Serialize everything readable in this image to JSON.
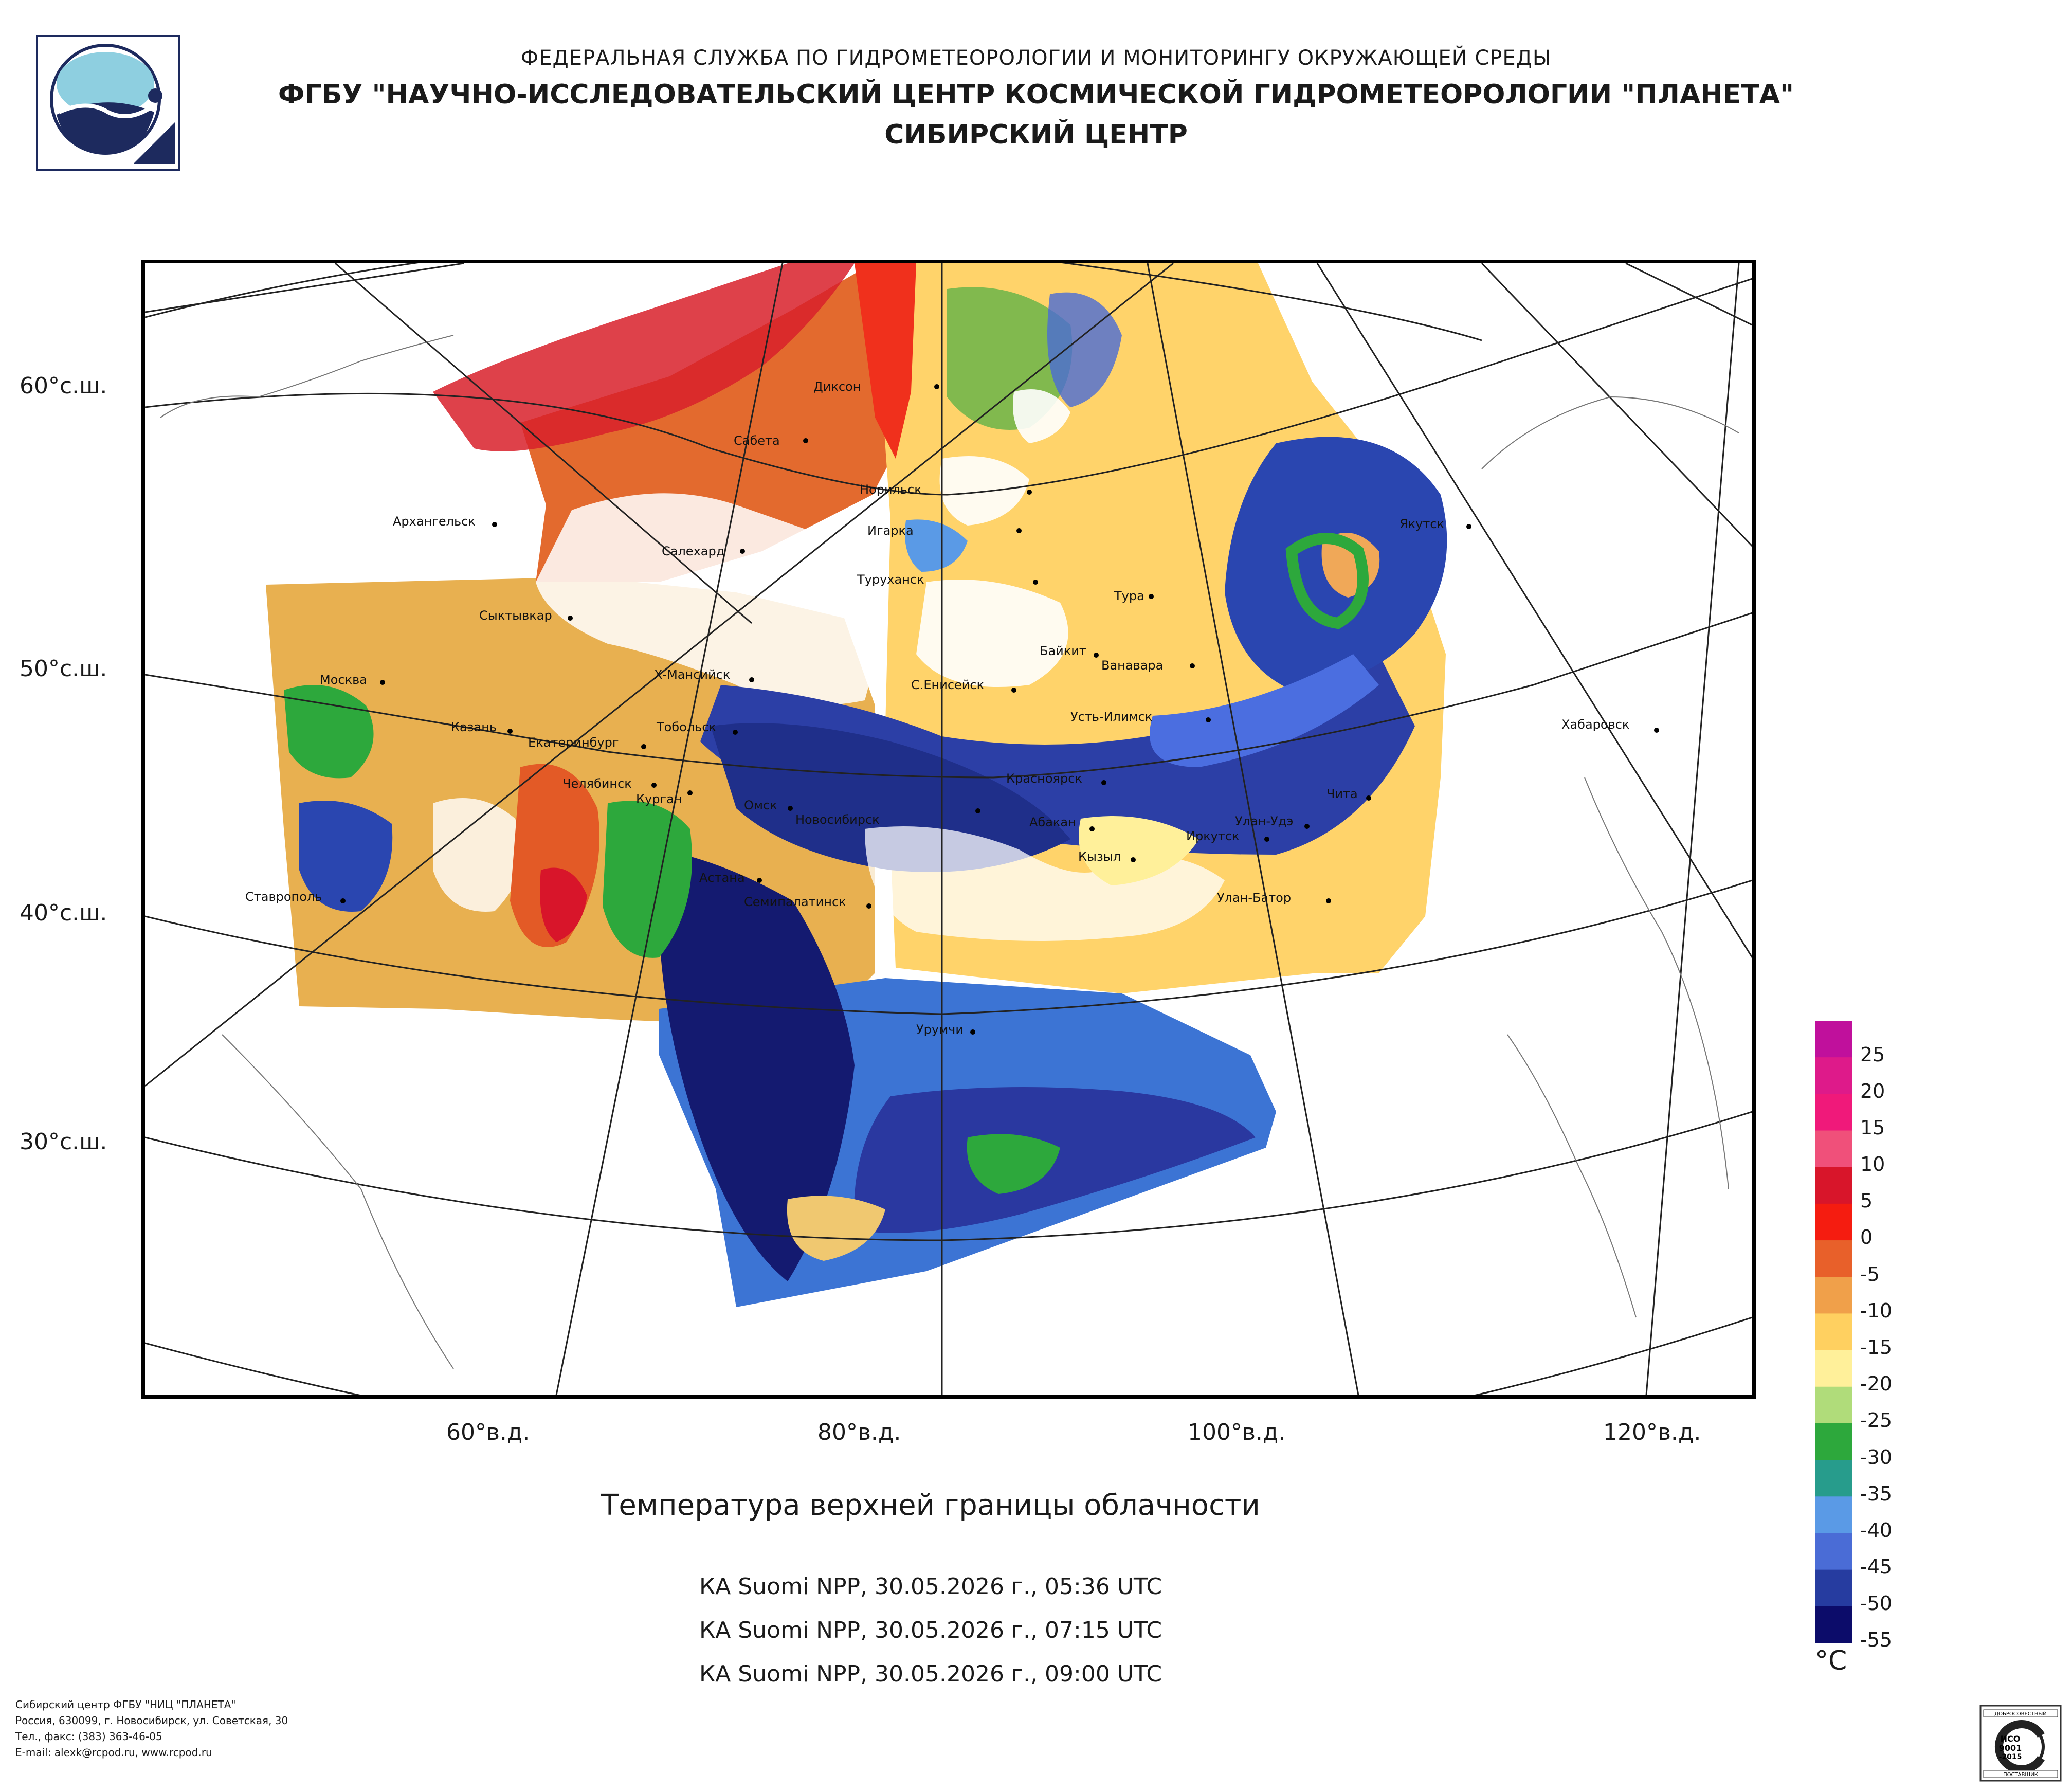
{
  "header": {
    "line1": "ФЕДЕРАЛЬНАЯ СЛУЖБА ПО ГИДРОМЕТЕОРОЛОГИИ И МОНИТОРИНГУ ОКРУЖАЮЩЕЙ СРЕДЫ",
    "line2": "ФГБУ \"НАУЧНО-ИССЛЕДОВАТЕЛЬСКИЙ ЦЕНТР КОСМИЧЕСКОЙ ГИДРОМЕТЕОРОЛОГИИ \"ПЛАНЕТА\"",
    "line3": "СИБИРСКИЙ ЦЕНТР"
  },
  "map": {
    "lat_labels": [
      "60°с.ш.",
      "50°с.ш.",
      "40°с.ш.",
      "30°с.ш."
    ],
    "lon_labels": [
      "60°в.д.",
      "80°в.д.",
      "100°в.д.",
      "120°в.д."
    ],
    "cities": [
      "Диксон",
      "Сабета",
      "Норильск",
      "Игарка",
      "Архангельск",
      "Салехард",
      "Туруханск",
      "Тура",
      "Якутск",
      "Сыктывкар",
      "Байкит",
      "Ванавара",
      "Москва",
      "Х-Мансийск",
      "С.Енисейск",
      "Усть-Илимск",
      "Хабаровск",
      "Казань",
      "Екатеринбург",
      "Тобольск",
      "Красноярск",
      "Челябинск",
      "Курган",
      "Омск",
      "Чита",
      "Новосибирск",
      "Абакан",
      "Улан-Удэ",
      "Иркутск",
      "Кызыл",
      "Астана",
      "Ставрополь",
      "Семипалатинск",
      "Улан-Батор",
      "Урумчи"
    ]
  },
  "title": "Температура верхней границы облачности",
  "passes": [
    "КА Suomi NPP, 30.05.2026 г., 05:36 UTC",
    "КА Suomi NPP, 30.05.2026 г., 07:15 UTC",
    "КА Suomi NPP, 30.05.2026 г., 09:00 UTC"
  ],
  "legend": {
    "unit": "°C",
    "labels": [
      "25",
      "20",
      "15",
      "10",
      "5",
      "0",
      "-5",
      "-10",
      "-15",
      "-20",
      "-25",
      "-30",
      "-35",
      "-40",
      "-45",
      "-50",
      "-55"
    ],
    "colors": [
      "#c0109c",
      "#de1a8a",
      "#f0197a",
      "#f0507a",
      "#d8152a",
      "#f51c10",
      "#e8602a",
      "#f0a04a",
      "#ffd060",
      "#fff09a",
      "#b0dc7a",
      "#2da83c",
      "#279c8c",
      "#5a9ae6",
      "#4a6cd6",
      "#263ca0",
      "#0c0c6a"
    ]
  },
  "footer": {
    "line1": "Сибирский центр ФГБУ \"НИЦ \"ПЛАНЕТА\"",
    "line2": "Россия, 630099, г. Новосибирск, ул. Советская, 30",
    "line3": "Тел., факс: (383) 363-46-05",
    "line4": "E-mail: alexk@rcpod.ru, www.rcpod.ru"
  },
  "cert": {
    "top": "ДОБРОСОВЕСТНЫЙ",
    "mid1": "ИСО",
    "mid2": "9001",
    "mid3": "-2015",
    "bottom": "ПОСТАВЩИК"
  }
}
